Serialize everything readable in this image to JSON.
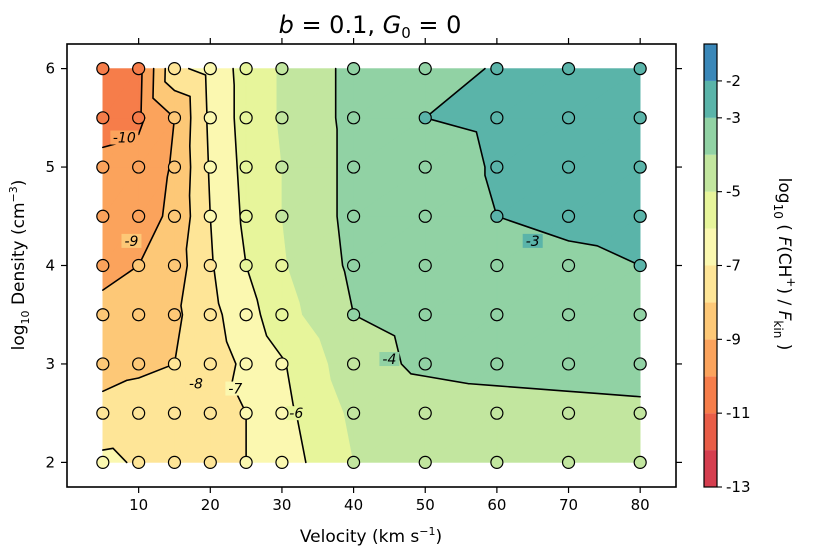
{
  "chart_data": {
    "type": "heatmap",
    "subtype": "filled-contour",
    "title": "b = 0.1, G0 = 0",
    "xlabel": "Velocity (km s^-1)",
    "ylabel": "log10 Density (cm^-3)",
    "colorbar_label": "log10 ( F(CH+) / F_kin )",
    "xlim": [
      0,
      85
    ],
    "ylim": [
      1.75,
      6.25
    ],
    "x_ticks": [
      10,
      20,
      30,
      40,
      50,
      60,
      70,
      80
    ],
    "y_ticks": [
      2,
      3,
      4,
      5,
      6
    ],
    "colorbar": {
      "range": [
        -13,
        -1
      ],
      "ticks": [
        -13,
        -11,
        -9,
        -7,
        -5,
        -3,
        -2
      ],
      "ticks_display": [
        "-13",
        "-11",
        "-9",
        "-7",
        "-5",
        "-3",
        "-2"
      ],
      "levels": [
        -13,
        -12,
        -11,
        -10,
        -9,
        -8,
        -7,
        -6,
        -5,
        -4,
        -3,
        -2,
        -1
      ],
      "colors": [
        "#b41d4a",
        "#d53e4f",
        "#e95d47",
        "#f67d4a",
        "#fba35c",
        "#fdc877",
        "#fee597",
        "#fbf8b0",
        "#e7f59b",
        "#c2e69f",
        "#91d2a4",
        "#5ab4a9",
        "#3a87b8",
        "#5a5fa9"
      ]
    },
    "grid_x": [
      5,
      10,
      15,
      20,
      25,
      30,
      40,
      50,
      60,
      70,
      80
    ],
    "grid_y": [
      2,
      2.5,
      3,
      3.5,
      4,
      4.5,
      5,
      5.5,
      6
    ],
    "samples": [
      [
        -6.8,
        -7.1,
        -7.3,
        -7.2,
        -7.0,
        -6.5,
        -5.0,
        -4.8,
        -4.7,
        -4.6,
        -4.5
      ],
      [
        -7.6,
        -7.5,
        -7.4,
        -7.3,
        -7.0,
        -6.3,
        -4.8,
        -4.6,
        -4.5,
        -4.4,
        -4.3
      ],
      [
        -8.5,
        -8.2,
        -8.0,
        -7.5,
        -6.8,
        -6.1,
        -4.4,
        -3.8,
        -3.6,
        -3.5,
        -3.4
      ],
      [
        -8.8,
        -8.6,
        -8.2,
        -7.3,
        -6.4,
        -5.4,
        -4.0,
        -3.7,
        -3.6,
        -3.5,
        -3.4
      ],
      [
        -9.2,
        -9.0,
        -8.5,
        -7.1,
        -6.0,
        -5.1,
        -3.8,
        -3.6,
        -3.4,
        -3.2,
        -3.0
      ],
      [
        -9.6,
        -9.4,
        -8.8,
        -7.0,
        -5.8,
        -5.0,
        -3.7,
        -3.5,
        -3.0,
        -2.8,
        -2.7
      ],
      [
        -9.8,
        -9.6,
        -8.9,
        -6.9,
        -5.7,
        -5.0,
        -3.7,
        -3.5,
        -2.9,
        -2.7,
        -2.6
      ],
      [
        -10.3,
        -10.2,
        -9.0,
        -6.8,
        -5.6,
        -4.9,
        -3.7,
        -3.0,
        -2.8,
        -2.6,
        -2.5
      ],
      [
        -10.6,
        -10.3,
        -7.2,
        -6.7,
        -5.6,
        -4.9,
        -3.7,
        -3.5,
        -2.9,
        -2.6,
        -2.5
      ]
    ],
    "contour_labels": [
      {
        "value": -10,
        "label": "-10",
        "x": 8,
        "y": 5.3
      },
      {
        "value": -9,
        "label": "-9",
        "x": 9,
        "y": 4.25
      },
      {
        "value": -8,
        "label": "-8",
        "x": 18,
        "y": 2.8
      },
      {
        "value": -7,
        "label": "-7",
        "x": 23.5,
        "y": 2.75
      },
      {
        "value": -6,
        "label": "-6",
        "x": 32,
        "y": 2.5
      },
      {
        "value": -4,
        "label": "-4",
        "x": 45,
        "y": 3.05
      },
      {
        "value": -3,
        "label": "-3",
        "x": 65,
        "y": 4.25
      }
    ]
  }
}
